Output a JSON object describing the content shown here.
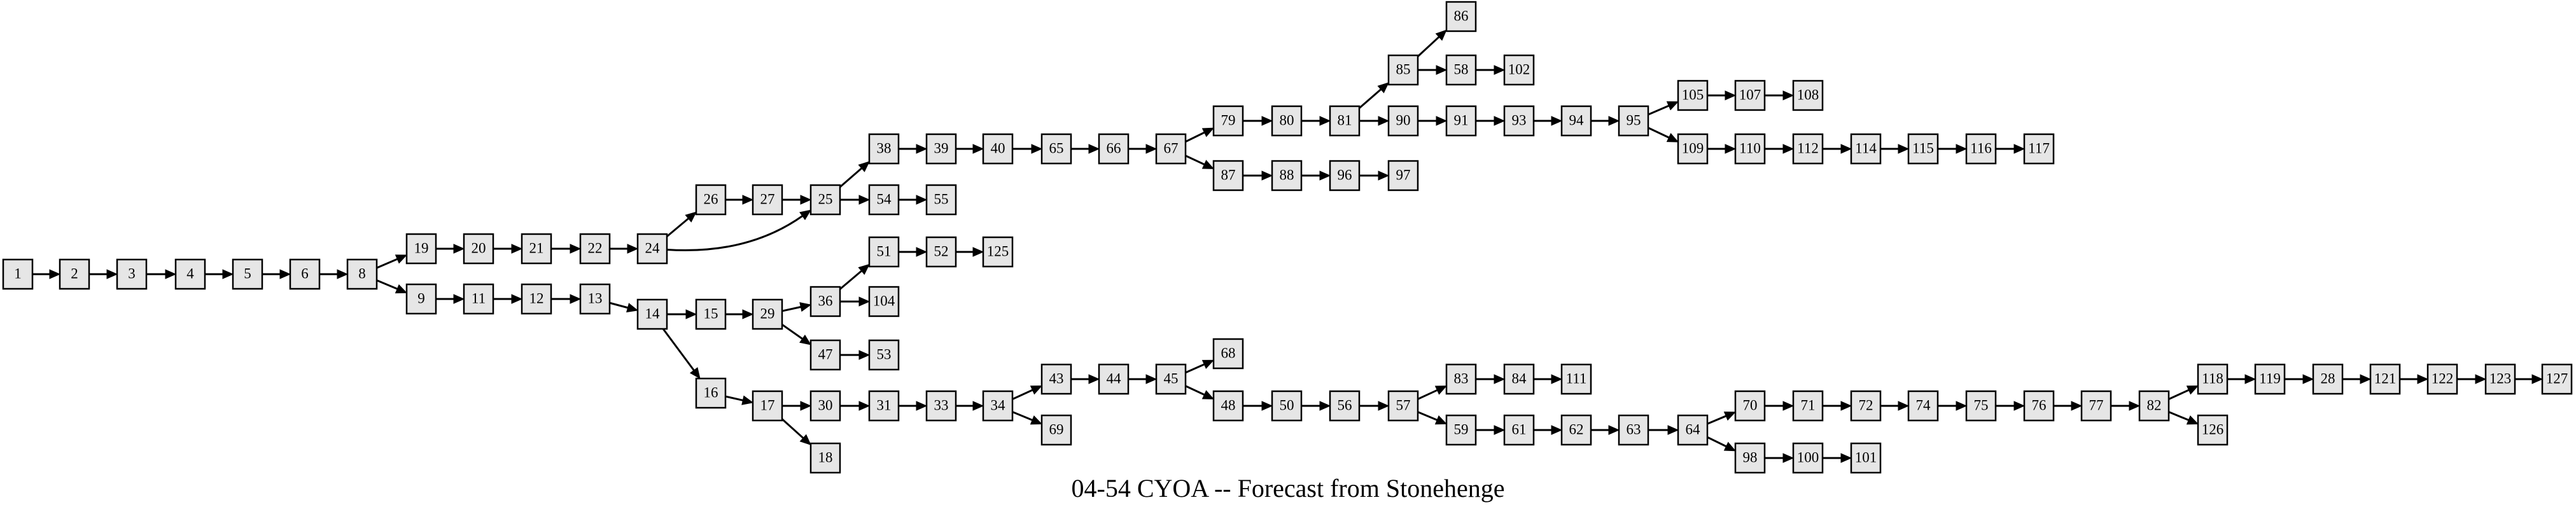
{
  "title": "04-54 CYOA -- Forecast from Stonehenge",
  "colors": {
    "node_fill": "#e6e6e6",
    "stroke": "#000000",
    "background": "#ffffff"
  },
  "nodes": [
    "1",
    "2",
    "3",
    "4",
    "5",
    "6",
    "8",
    "19",
    "20",
    "21",
    "22",
    "24",
    "26",
    "27",
    "25",
    "38",
    "39",
    "40",
    "65",
    "66",
    "67",
    "79",
    "80",
    "81",
    "85",
    "86",
    "58",
    "102",
    "90",
    "91",
    "93",
    "94",
    "95",
    "105",
    "107",
    "108",
    "109",
    "110",
    "112",
    "114",
    "115",
    "116",
    "117",
    "87",
    "88",
    "96",
    "97",
    "54",
    "55",
    "9",
    "11",
    "12",
    "13",
    "14",
    "15",
    "29",
    "36",
    "51",
    "52",
    "125",
    "104",
    "47",
    "53",
    "16",
    "17",
    "18",
    "30",
    "31",
    "33",
    "34",
    "43",
    "44",
    "45",
    "68",
    "48",
    "50",
    "56",
    "57",
    "83",
    "84",
    "111",
    "59",
    "61",
    "62",
    "63",
    "64",
    "70",
    "71",
    "72",
    "74",
    "75",
    "76",
    "77",
    "82",
    "118",
    "119",
    "28",
    "121",
    "122",
    "123",
    "127",
    "126",
    "98",
    "100",
    "101",
    "69"
  ],
  "edges": [
    [
      "1",
      "2"
    ],
    [
      "2",
      "3"
    ],
    [
      "3",
      "4"
    ],
    [
      "4",
      "5"
    ],
    [
      "5",
      "6"
    ],
    [
      "6",
      "8"
    ],
    [
      "8",
      "19"
    ],
    [
      "8",
      "9"
    ],
    [
      "19",
      "20"
    ],
    [
      "20",
      "21"
    ],
    [
      "21",
      "22"
    ],
    [
      "22",
      "24"
    ],
    [
      "24",
      "26"
    ],
    [
      "24",
      "25"
    ],
    [
      "26",
      "27"
    ],
    [
      "27",
      "25"
    ],
    [
      "25",
      "38"
    ],
    [
      "25",
      "54"
    ],
    [
      "54",
      "55"
    ],
    [
      "38",
      "39"
    ],
    [
      "39",
      "40"
    ],
    [
      "40",
      "65"
    ],
    [
      "65",
      "66"
    ],
    [
      "66",
      "67"
    ],
    [
      "67",
      "79"
    ],
    [
      "67",
      "87"
    ],
    [
      "79",
      "80"
    ],
    [
      "80",
      "81"
    ],
    [
      "81",
      "85"
    ],
    [
      "81",
      "90"
    ],
    [
      "85",
      "86"
    ],
    [
      "85",
      "58"
    ],
    [
      "58",
      "102"
    ],
    [
      "90",
      "91"
    ],
    [
      "91",
      "93"
    ],
    [
      "93",
      "94"
    ],
    [
      "94",
      "95"
    ],
    [
      "95",
      "105"
    ],
    [
      "95",
      "109"
    ],
    [
      "105",
      "107"
    ],
    [
      "107",
      "108"
    ],
    [
      "109",
      "110"
    ],
    [
      "110",
      "112"
    ],
    [
      "112",
      "114"
    ],
    [
      "114",
      "115"
    ],
    [
      "115",
      "116"
    ],
    [
      "116",
      "117"
    ],
    [
      "87",
      "88"
    ],
    [
      "88",
      "96"
    ],
    [
      "96",
      "97"
    ],
    [
      "9",
      "11"
    ],
    [
      "11",
      "12"
    ],
    [
      "12",
      "13"
    ],
    [
      "13",
      "14"
    ],
    [
      "14",
      "15"
    ],
    [
      "14",
      "16"
    ],
    [
      "15",
      "29"
    ],
    [
      "29",
      "36"
    ],
    [
      "29",
      "47"
    ],
    [
      "36",
      "51"
    ],
    [
      "36",
      "104"
    ],
    [
      "51",
      "52"
    ],
    [
      "52",
      "125"
    ],
    [
      "47",
      "53"
    ],
    [
      "16",
      "17"
    ],
    [
      "17",
      "30"
    ],
    [
      "17",
      "18"
    ],
    [
      "30",
      "31"
    ],
    [
      "31",
      "33"
    ],
    [
      "33",
      "34"
    ],
    [
      "34",
      "43"
    ],
    [
      "34",
      "69"
    ],
    [
      "43",
      "44"
    ],
    [
      "44",
      "45"
    ],
    [
      "45",
      "68"
    ],
    [
      "45",
      "48"
    ],
    [
      "48",
      "50"
    ],
    [
      "50",
      "56"
    ],
    [
      "56",
      "57"
    ],
    [
      "57",
      "83"
    ],
    [
      "57",
      "59"
    ],
    [
      "83",
      "84"
    ],
    [
      "84",
      "111"
    ],
    [
      "59",
      "61"
    ],
    [
      "61",
      "62"
    ],
    [
      "62",
      "63"
    ],
    [
      "63",
      "64"
    ],
    [
      "64",
      "70"
    ],
    [
      "64",
      "98"
    ],
    [
      "98",
      "100"
    ],
    [
      "100",
      "101"
    ],
    [
      "70",
      "71"
    ],
    [
      "71",
      "72"
    ],
    [
      "72",
      "74"
    ],
    [
      "74",
      "75"
    ],
    [
      "75",
      "76"
    ],
    [
      "76",
      "77"
    ],
    [
      "77",
      "82"
    ],
    [
      "82",
      "118"
    ],
    [
      "82",
      "126"
    ],
    [
      "118",
      "119"
    ],
    [
      "119",
      "28"
    ],
    [
      "28",
      "121"
    ],
    [
      "121",
      "122"
    ],
    [
      "122",
      "123"
    ],
    [
      "123",
      "127"
    ]
  ]
}
